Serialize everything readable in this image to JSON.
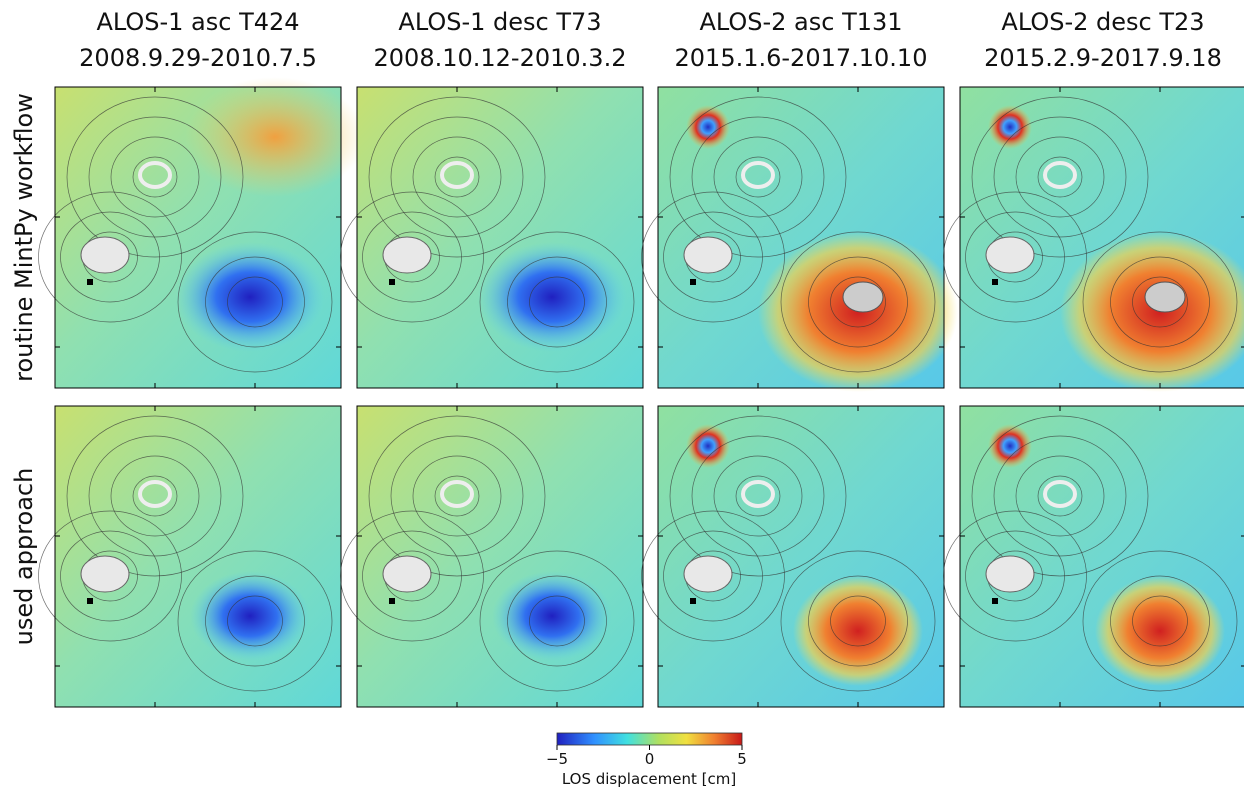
{
  "columns": [
    {
      "title": "ALOS-1 asc T424",
      "dates": "2008.9.29-2010.7.5"
    },
    {
      "title": "ALOS-1 desc T73",
      "dates": "2008.10.12-2010.3.2"
    },
    {
      "title": "ALOS-2 asc T131",
      "dates": "2015.1.6-2017.10.10"
    },
    {
      "title": "ALOS-2 desc T23",
      "dates": "2015.2.9-2017.9.18"
    }
  ],
  "rows": [
    "routine MintPy workflow",
    "used approach"
  ],
  "colorbar": {
    "label": "LOS displacement [cm]",
    "lim": [
      -5,
      5
    ],
    "ticks": [
      {
        "value": -5,
        "label": "−5"
      },
      0,
      5
    ]
  }
}
